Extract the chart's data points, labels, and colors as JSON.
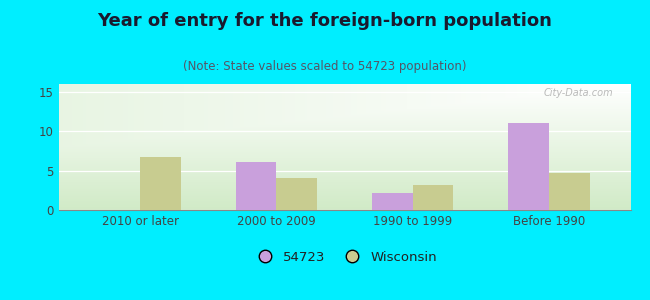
{
  "title": "Year of entry for the foreign-born population",
  "subtitle": "(Note: State values scaled to 54723 population)",
  "categories": [
    "2010 or later",
    "2000 to 2009",
    "1990 to 1999",
    "Before 1990"
  ],
  "values_54723": [
    0,
    6.1,
    2.1,
    11.1
  ],
  "values_wisconsin": [
    6.7,
    4.1,
    3.2,
    4.7
  ],
  "color_54723": "#c9a0dc",
  "color_wisconsin": "#c8cc90",
  "background_outer": "#00eeff",
  "ylim": [
    0,
    16
  ],
  "yticks": [
    0,
    5,
    10,
    15
  ],
  "bar_width": 0.3,
  "legend_label_54723": "54723",
  "legend_label_wisconsin": "Wisconsin",
  "title_fontsize": 13,
  "subtitle_fontsize": 8.5,
  "tick_fontsize": 8.5,
  "legend_fontsize": 9.5
}
